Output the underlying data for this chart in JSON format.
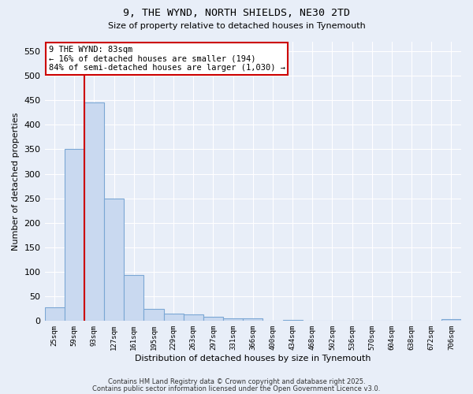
{
  "title_line1": "9, THE WYND, NORTH SHIELDS, NE30 2TD",
  "title_line2": "Size of property relative to detached houses in Tynemouth",
  "xlabel": "Distribution of detached houses by size in Tynemouth",
  "ylabel": "Number of detached properties",
  "categories": [
    "25sqm",
    "59sqm",
    "93sqm",
    "127sqm",
    "161sqm",
    "195sqm",
    "229sqm",
    "263sqm",
    "297sqm",
    "331sqm",
    "366sqm",
    "400sqm",
    "434sqm",
    "468sqm",
    "502sqm",
    "536sqm",
    "570sqm",
    "604sqm",
    "638sqm",
    "672sqm",
    "706sqm"
  ],
  "values": [
    28,
    350,
    445,
    250,
    93,
    25,
    15,
    14,
    9,
    5,
    5,
    0,
    2,
    0,
    0,
    0,
    0,
    0,
    0,
    0,
    3
  ],
  "bar_color": "#c9d9f0",
  "bar_edge_color": "#7ba7d4",
  "red_line_x": 1.5,
  "annotation_text": "9 THE WYND: 83sqm\n← 16% of detached houses are smaller (194)\n84% of semi-detached houses are larger (1,030) →",
  "annotation_box_color": "#ffffff",
  "annotation_box_edge_color": "#cc0000",
  "red_line_color": "#cc0000",
  "ylim": [
    0,
    570
  ],
  "yticks": [
    0,
    50,
    100,
    150,
    200,
    250,
    300,
    350,
    400,
    450,
    500,
    550
  ],
  "background_color": "#e8eef8",
  "plot_background_color": "#e8eef8",
  "footer_line1": "Contains HM Land Registry data © Crown copyright and database right 2025.",
  "footer_line2": "Contains public sector information licensed under the Open Government Licence v3.0."
}
